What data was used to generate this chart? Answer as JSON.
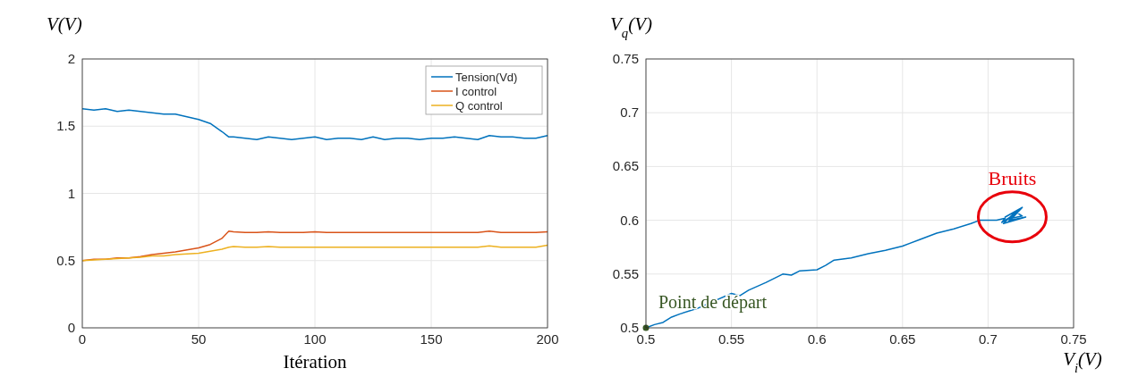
{
  "chart_data": [
    {
      "type": "line",
      "xlabel": "Itération",
      "ylabel": "V(V)",
      "x": [
        0,
        5,
        10,
        15,
        20,
        25,
        30,
        35,
        40,
        45,
        50,
        55,
        60,
        63,
        65,
        70,
        75,
        80,
        85,
        90,
        95,
        100,
        105,
        110,
        115,
        120,
        125,
        130,
        135,
        140,
        145,
        150,
        155,
        160,
        165,
        170,
        175,
        180,
        185,
        190,
        195,
        200
      ],
      "series": [
        {
          "name": "Tension(Vd)",
          "color": "#0072bd",
          "values": [
            1.63,
            1.62,
            1.63,
            1.61,
            1.62,
            1.61,
            1.6,
            1.59,
            1.59,
            1.57,
            1.55,
            1.52,
            1.46,
            1.42,
            1.42,
            1.41,
            1.4,
            1.42,
            1.41,
            1.4,
            1.41,
            1.42,
            1.4,
            1.41,
            1.41,
            1.4,
            1.42,
            1.4,
            1.41,
            1.41,
            1.4,
            1.41,
            1.41,
            1.42,
            1.41,
            1.4,
            1.43,
            1.42,
            1.42,
            1.41,
            1.41,
            1.43
          ]
        },
        {
          "name": "I control",
          "color": "#d95319",
          "values": [
            0.5,
            0.51,
            0.51,
            0.52,
            0.52,
            0.53,
            0.545,
            0.555,
            0.565,
            0.58,
            0.595,
            0.62,
            0.665,
            0.72,
            0.715,
            0.71,
            0.71,
            0.715,
            0.71,
            0.71,
            0.71,
            0.715,
            0.71,
            0.71,
            0.71,
            0.71,
            0.71,
            0.71,
            0.71,
            0.71,
            0.71,
            0.71,
            0.71,
            0.71,
            0.71,
            0.71,
            0.72,
            0.71,
            0.71,
            0.71,
            0.71,
            0.715
          ]
        },
        {
          "name": "Q control",
          "color": "#edb120",
          "values": [
            0.5,
            0.505,
            0.51,
            0.515,
            0.52,
            0.525,
            0.535,
            0.535,
            0.545,
            0.55,
            0.555,
            0.57,
            0.585,
            0.6,
            0.605,
            0.6,
            0.6,
            0.605,
            0.6,
            0.6,
            0.6,
            0.6,
            0.6,
            0.6,
            0.6,
            0.6,
            0.6,
            0.6,
            0.6,
            0.6,
            0.6,
            0.6,
            0.6,
            0.6,
            0.6,
            0.6,
            0.61,
            0.6,
            0.6,
            0.6,
            0.6,
            0.615
          ]
        }
      ],
      "xlim": [
        0,
        200
      ],
      "xticks": [
        0,
        50,
        100,
        150,
        200
      ],
      "ylim": [
        0,
        2
      ],
      "yticks": [
        0,
        0.5,
        1,
        1.5,
        2
      ],
      "grid": true,
      "legend": "top right"
    },
    {
      "type": "line",
      "xlabel": "V$_{i}$(V)",
      "ylabel": "V$_{q}$(V)",
      "series": [
        {
          "color": "#0072bd",
          "x": [
            0.5,
            0.505,
            0.51,
            0.515,
            0.52,
            0.53,
            0.54,
            0.55,
            0.555,
            0.56,
            0.57,
            0.58,
            0.585,
            0.59,
            0.6,
            0.605,
            0.61,
            0.62,
            0.63,
            0.64,
            0.65,
            0.66,
            0.67,
            0.68,
            0.69,
            0.695,
            0.7,
            0.705,
            0.71,
            0.708,
            0.715,
            0.712,
            0.718,
            0.71,
            0.72,
            0.713,
            0.722,
            0.709,
            0.716,
            0.72,
            0.711
          ],
          "values": [
            0.5,
            0.503,
            0.505,
            0.51,
            0.513,
            0.518,
            0.525,
            0.532,
            0.53,
            0.535,
            0.542,
            0.55,
            0.549,
            0.553,
            0.554,
            0.558,
            0.563,
            0.565,
            0.569,
            0.572,
            0.576,
            0.582,
            0.588,
            0.592,
            0.597,
            0.6,
            0.6,
            0.6,
            0.602,
            0.598,
            0.605,
            0.599,
            0.61,
            0.603,
            0.612,
            0.6,
            0.603,
            0.597,
            0.608,
            0.604,
            0.601
          ]
        },
        {
          "type": "scatter",
          "color": "#375623",
          "x": [
            0.5
          ],
          "values": [
            0.5
          ],
          "marker": "circle"
        }
      ],
      "annotations": [
        "Bruits",
        {
          "text": "Point de départ",
          "x": 0.5,
          "y": 0.5
        }
      ],
      "xlim": [
        0.5,
        0.75
      ],
      "xticks": [
        0.5,
        0.55,
        0.6,
        0.65,
        0.7,
        0.75
      ],
      "ylim": [
        0.5,
        0.75
      ],
      "yticks": [
        0.5,
        0.55,
        0.6,
        0.65,
        0.7,
        0.75
      ],
      "grid": true
    }
  ]
}
